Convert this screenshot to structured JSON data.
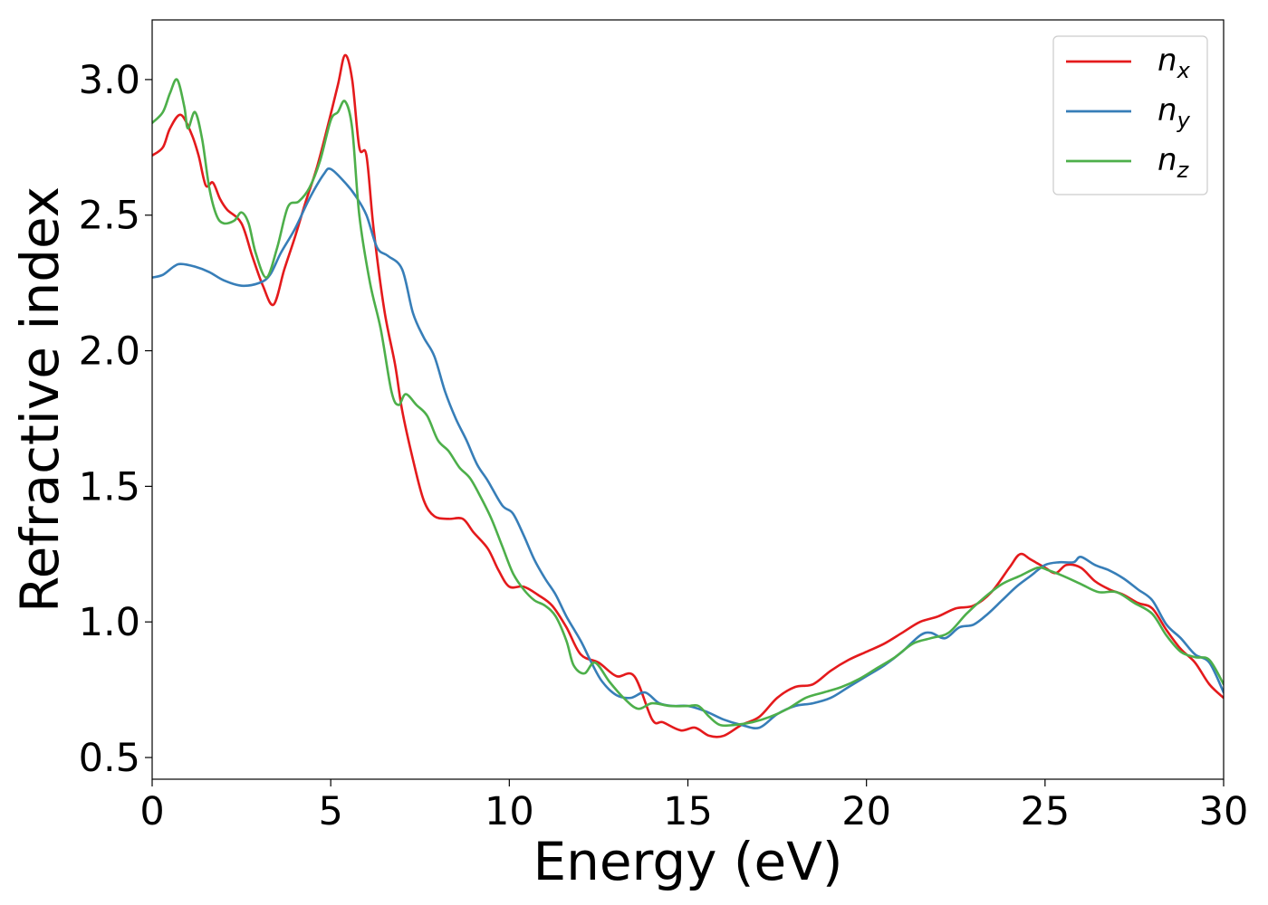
{
  "chart_data": {
    "type": "line",
    "title": "",
    "xlabel": "Energy (eV)",
    "ylabel": "Refractive index",
    "xlim": [
      0,
      30
    ],
    "ylim": [
      0.42,
      3.22
    ],
    "xticks": [
      0,
      5,
      10,
      15,
      20,
      25,
      30
    ],
    "yticks": [
      0.5,
      1.0,
      1.5,
      2.0,
      2.5,
      3.0
    ],
    "xtick_labels": [
      "0",
      "5",
      "10",
      "15",
      "20",
      "25",
      "30"
    ],
    "ytick_labels": [
      "0.5",
      "1.0",
      "1.5",
      "2.0",
      "2.5",
      "3.0"
    ],
    "grid": false,
    "legend_position": "top-right",
    "series": [
      {
        "name": "n_x",
        "label_base": "n",
        "label_sub": "x",
        "color": "#e41a1c",
        "points": [
          [
            0,
            2.72
          ],
          [
            0.3,
            2.75
          ],
          [
            0.5,
            2.82
          ],
          [
            0.8,
            2.87
          ],
          [
            1.1,
            2.8
          ],
          [
            1.3,
            2.72
          ],
          [
            1.5,
            2.61
          ],
          [
            1.7,
            2.62
          ],
          [
            1.9,
            2.56
          ],
          [
            2.1,
            2.52
          ],
          [
            2.5,
            2.47
          ],
          [
            2.8,
            2.35
          ],
          [
            3.1,
            2.24
          ],
          [
            3.4,
            2.17
          ],
          [
            3.7,
            2.3
          ],
          [
            4.0,
            2.42
          ],
          [
            4.3,
            2.55
          ],
          [
            4.6,
            2.67
          ],
          [
            4.9,
            2.82
          ],
          [
            5.2,
            2.98
          ],
          [
            5.4,
            3.09
          ],
          [
            5.6,
            3.0
          ],
          [
            5.8,
            2.75
          ],
          [
            6.0,
            2.72
          ],
          [
            6.2,
            2.45
          ],
          [
            6.5,
            2.15
          ],
          [
            6.8,
            1.95
          ],
          [
            7.0,
            1.78
          ],
          [
            7.3,
            1.6
          ],
          [
            7.6,
            1.45
          ],
          [
            7.9,
            1.39
          ],
          [
            8.3,
            1.38
          ],
          [
            8.7,
            1.38
          ],
          [
            9.0,
            1.33
          ],
          [
            9.4,
            1.27
          ],
          [
            9.7,
            1.19
          ],
          [
            10.0,
            1.13
          ],
          [
            10.4,
            1.13
          ],
          [
            10.8,
            1.1
          ],
          [
            11.2,
            1.06
          ],
          [
            11.6,
            0.98
          ],
          [
            12.0,
            0.88
          ],
          [
            12.5,
            0.85
          ],
          [
            13.0,
            0.8
          ],
          [
            13.5,
            0.8
          ],
          [
            14.0,
            0.64
          ],
          [
            14.3,
            0.63
          ],
          [
            14.8,
            0.6
          ],
          [
            15.2,
            0.61
          ],
          [
            15.6,
            0.58
          ],
          [
            16.0,
            0.58
          ],
          [
            16.5,
            0.62
          ],
          [
            17.0,
            0.65
          ],
          [
            17.5,
            0.72
          ],
          [
            18.0,
            0.76
          ],
          [
            18.5,
            0.77
          ],
          [
            19.0,
            0.82
          ],
          [
            19.5,
            0.86
          ],
          [
            20.0,
            0.89
          ],
          [
            20.5,
            0.92
          ],
          [
            21.0,
            0.96
          ],
          [
            21.5,
            1.0
          ],
          [
            22.0,
            1.02
          ],
          [
            22.5,
            1.05
          ],
          [
            23.0,
            1.06
          ],
          [
            23.5,
            1.11
          ],
          [
            24.0,
            1.2
          ],
          [
            24.3,
            1.25
          ],
          [
            24.6,
            1.23
          ],
          [
            25.0,
            1.2
          ],
          [
            25.3,
            1.18
          ],
          [
            25.6,
            1.21
          ],
          [
            26.0,
            1.2
          ],
          [
            26.4,
            1.15
          ],
          [
            26.8,
            1.12
          ],
          [
            27.2,
            1.1
          ],
          [
            27.6,
            1.07
          ],
          [
            28.0,
            1.05
          ],
          [
            28.4,
            0.97
          ],
          [
            28.8,
            0.9
          ],
          [
            29.2,
            0.85
          ],
          [
            29.6,
            0.77
          ],
          [
            30.0,
            0.72
          ]
        ]
      },
      {
        "name": "n_y",
        "label_base": "n",
        "label_sub": "y",
        "color": "#377eb8",
        "points": [
          [
            0,
            2.27
          ],
          [
            0.3,
            2.28
          ],
          [
            0.6,
            2.31
          ],
          [
            0.8,
            2.32
          ],
          [
            1.2,
            2.31
          ],
          [
            1.6,
            2.29
          ],
          [
            2.0,
            2.26
          ],
          [
            2.5,
            2.24
          ],
          [
            3.0,
            2.25
          ],
          [
            3.3,
            2.28
          ],
          [
            3.6,
            2.36
          ],
          [
            4.0,
            2.45
          ],
          [
            4.4,
            2.56
          ],
          [
            4.8,
            2.65
          ],
          [
            5.0,
            2.67
          ],
          [
            5.4,
            2.62
          ],
          [
            5.7,
            2.57
          ],
          [
            6.0,
            2.5
          ],
          [
            6.3,
            2.38
          ],
          [
            6.6,
            2.35
          ],
          [
            7.0,
            2.3
          ],
          [
            7.3,
            2.14
          ],
          [
            7.6,
            2.05
          ],
          [
            7.9,
            1.98
          ],
          [
            8.2,
            1.85
          ],
          [
            8.5,
            1.75
          ],
          [
            8.8,
            1.67
          ],
          [
            9.1,
            1.58
          ],
          [
            9.4,
            1.52
          ],
          [
            9.8,
            1.43
          ],
          [
            10.1,
            1.4
          ],
          [
            10.4,
            1.32
          ],
          [
            10.7,
            1.23
          ],
          [
            11.0,
            1.16
          ],
          [
            11.3,
            1.1
          ],
          [
            11.6,
            1.02
          ],
          [
            12.0,
            0.93
          ],
          [
            12.3,
            0.85
          ],
          [
            12.6,
            0.78
          ],
          [
            13.0,
            0.73
          ],
          [
            13.4,
            0.72
          ],
          [
            13.8,
            0.74
          ],
          [
            14.2,
            0.7
          ],
          [
            14.6,
            0.69
          ],
          [
            15.0,
            0.69
          ],
          [
            15.5,
            0.67
          ],
          [
            16.0,
            0.64
          ],
          [
            16.5,
            0.62
          ],
          [
            17.0,
            0.61
          ],
          [
            17.5,
            0.66
          ],
          [
            18.0,
            0.69
          ],
          [
            18.5,
            0.7
          ],
          [
            19.0,
            0.72
          ],
          [
            19.5,
            0.76
          ],
          [
            20.0,
            0.8
          ],
          [
            20.5,
            0.84
          ],
          [
            21.0,
            0.89
          ],
          [
            21.5,
            0.95
          ],
          [
            21.8,
            0.96
          ],
          [
            22.2,
            0.94
          ],
          [
            22.6,
            0.98
          ],
          [
            23.0,
            0.99
          ],
          [
            23.4,
            1.03
          ],
          [
            23.8,
            1.08
          ],
          [
            24.2,
            1.13
          ],
          [
            24.6,
            1.17
          ],
          [
            25.0,
            1.21
          ],
          [
            25.4,
            1.22
          ],
          [
            25.8,
            1.22
          ],
          [
            26.0,
            1.24
          ],
          [
            26.4,
            1.21
          ],
          [
            26.8,
            1.19
          ],
          [
            27.2,
            1.16
          ],
          [
            27.6,
            1.12
          ],
          [
            28.0,
            1.08
          ],
          [
            28.4,
            0.99
          ],
          [
            28.8,
            0.94
          ],
          [
            29.2,
            0.88
          ],
          [
            29.6,
            0.85
          ],
          [
            30.0,
            0.74
          ]
        ]
      },
      {
        "name": "n_z",
        "label_base": "n",
        "label_sub": "z",
        "color": "#4daf4a",
        "points": [
          [
            0,
            2.84
          ],
          [
            0.3,
            2.88
          ],
          [
            0.5,
            2.95
          ],
          [
            0.7,
            3.0
          ],
          [
            0.9,
            2.9
          ],
          [
            1.0,
            2.82
          ],
          [
            1.2,
            2.88
          ],
          [
            1.4,
            2.78
          ],
          [
            1.6,
            2.6
          ],
          [
            1.8,
            2.5
          ],
          [
            2.0,
            2.47
          ],
          [
            2.3,
            2.48
          ],
          [
            2.5,
            2.51
          ],
          [
            2.7,
            2.47
          ],
          [
            2.9,
            2.36
          ],
          [
            3.2,
            2.27
          ],
          [
            3.5,
            2.38
          ],
          [
            3.8,
            2.53
          ],
          [
            4.1,
            2.55
          ],
          [
            4.4,
            2.6
          ],
          [
            4.7,
            2.7
          ],
          [
            5.0,
            2.85
          ],
          [
            5.2,
            2.88
          ],
          [
            5.4,
            2.92
          ],
          [
            5.6,
            2.82
          ],
          [
            5.8,
            2.5
          ],
          [
            6.1,
            2.25
          ],
          [
            6.4,
            2.08
          ],
          [
            6.7,
            1.85
          ],
          [
            6.9,
            1.8
          ],
          [
            7.1,
            1.84
          ],
          [
            7.4,
            1.8
          ],
          [
            7.7,
            1.76
          ],
          [
            8.0,
            1.67
          ],
          [
            8.3,
            1.63
          ],
          [
            8.6,
            1.57
          ],
          [
            8.9,
            1.53
          ],
          [
            9.2,
            1.46
          ],
          [
            9.5,
            1.38
          ],
          [
            9.8,
            1.28
          ],
          [
            10.1,
            1.18
          ],
          [
            10.4,
            1.12
          ],
          [
            10.7,
            1.08
          ],
          [
            11.0,
            1.06
          ],
          [
            11.3,
            1.02
          ],
          [
            11.6,
            0.93
          ],
          [
            11.8,
            0.84
          ],
          [
            12.1,
            0.81
          ],
          [
            12.4,
            0.85
          ],
          [
            12.8,
            0.78
          ],
          [
            13.2,
            0.72
          ],
          [
            13.6,
            0.68
          ],
          [
            14.0,
            0.7
          ],
          [
            14.5,
            0.69
          ],
          [
            15.0,
            0.69
          ],
          [
            15.3,
            0.69
          ],
          [
            15.6,
            0.65
          ],
          [
            15.9,
            0.62
          ],
          [
            16.3,
            0.62
          ],
          [
            16.8,
            0.63
          ],
          [
            17.3,
            0.65
          ],
          [
            17.8,
            0.68
          ],
          [
            18.3,
            0.72
          ],
          [
            18.8,
            0.74
          ],
          [
            19.3,
            0.76
          ],
          [
            19.8,
            0.79
          ],
          [
            20.3,
            0.83
          ],
          [
            20.8,
            0.87
          ],
          [
            21.3,
            0.92
          ],
          [
            21.8,
            0.94
          ],
          [
            22.3,
            0.96
          ],
          [
            22.8,
            1.03
          ],
          [
            23.3,
            1.09
          ],
          [
            23.8,
            1.14
          ],
          [
            24.3,
            1.17
          ],
          [
            24.8,
            1.2
          ],
          [
            25.1,
            1.19
          ],
          [
            25.5,
            1.17
          ],
          [
            26.0,
            1.14
          ],
          [
            26.5,
            1.11
          ],
          [
            27.0,
            1.11
          ],
          [
            27.5,
            1.07
          ],
          [
            28.0,
            1.03
          ],
          [
            28.4,
            0.95
          ],
          [
            28.8,
            0.89
          ],
          [
            29.2,
            0.87
          ],
          [
            29.6,
            0.86
          ],
          [
            30.0,
            0.77
          ]
        ]
      }
    ]
  }
}
